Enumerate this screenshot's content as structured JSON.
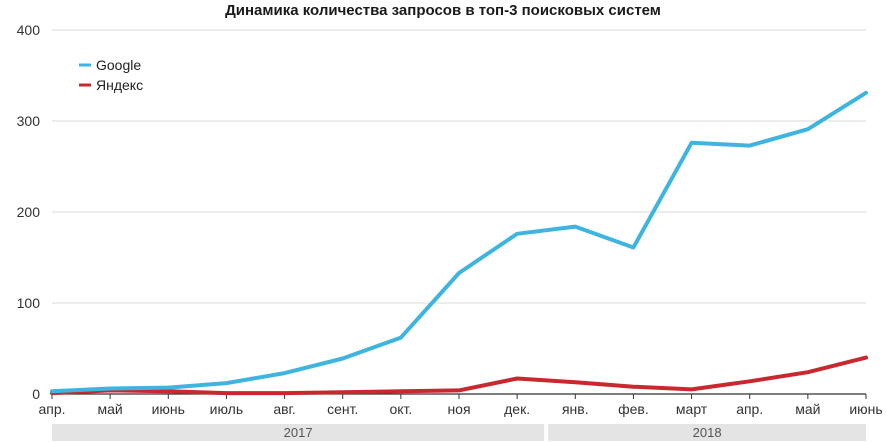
{
  "chart_data": {
    "type": "line",
    "title": "Динамика количества запросов в топ-3 поисковых систем",
    "categories": [
      "апр.",
      "май",
      "июнь",
      "июль",
      "авг.",
      "сент.",
      "окт.",
      "ноя",
      "дек.",
      "янв.",
      "фев.",
      "март",
      "апр.",
      "май",
      "июнь"
    ],
    "year_groups": [
      {
        "label": "2017",
        "from": 0,
        "to": 8
      },
      {
        "label": "2018",
        "from": 9,
        "to": 14
      }
    ],
    "series": [
      {
        "name": "Google",
        "color": "#3db5e0",
        "values": [
          3,
          6,
          7,
          12,
          23,
          39,
          62,
          133,
          176,
          184,
          161,
          276,
          273,
          291,
          331
        ]
      },
      {
        "name": "Яндекс",
        "color": "#c8282e",
        "values": [
          1,
          4,
          3,
          1,
          1,
          2,
          3,
          4,
          17,
          13,
          8,
          5,
          14,
          24,
          40
        ]
      }
    ],
    "ylim": [
      0,
      400
    ],
    "yticks": [
      0,
      100,
      200,
      300,
      400
    ],
    "grid": "horizontal",
    "legend": "top-left",
    "xlabel": "",
    "ylabel": ""
  }
}
